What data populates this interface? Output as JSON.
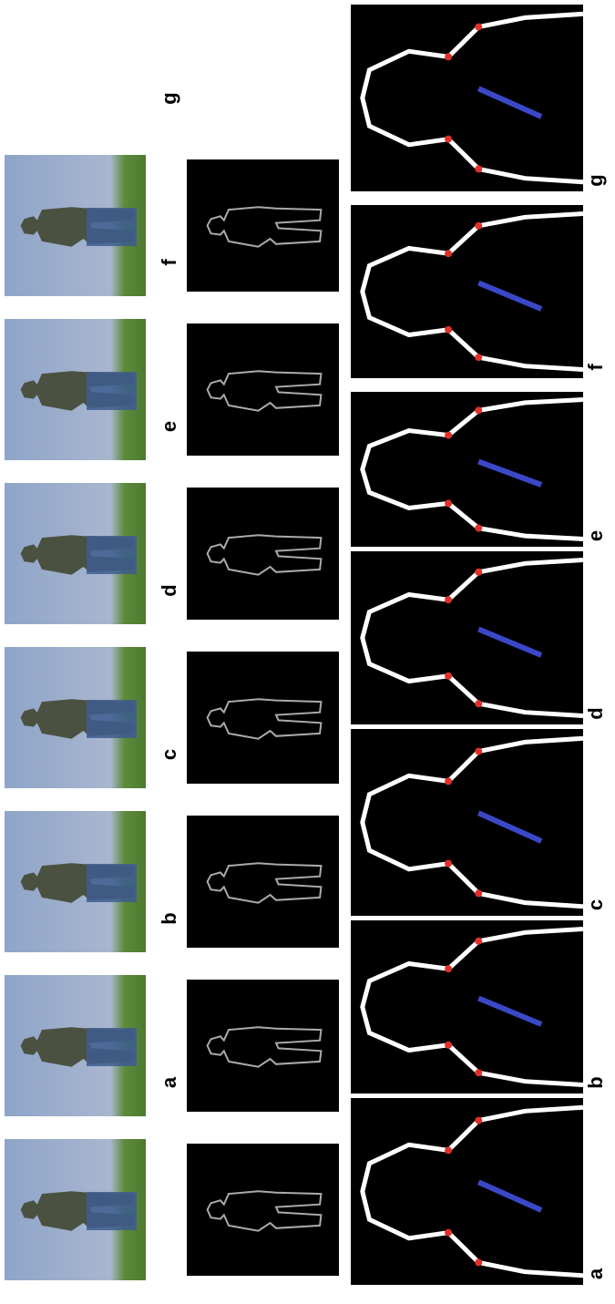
{
  "figure": {
    "sequence_labels": [
      "a",
      "b",
      "c",
      "d",
      "e",
      "f",
      "g"
    ],
    "contour_labels": [
      "a",
      "b",
      "c",
      "d",
      "e",
      "f",
      "g"
    ]
  }
}
